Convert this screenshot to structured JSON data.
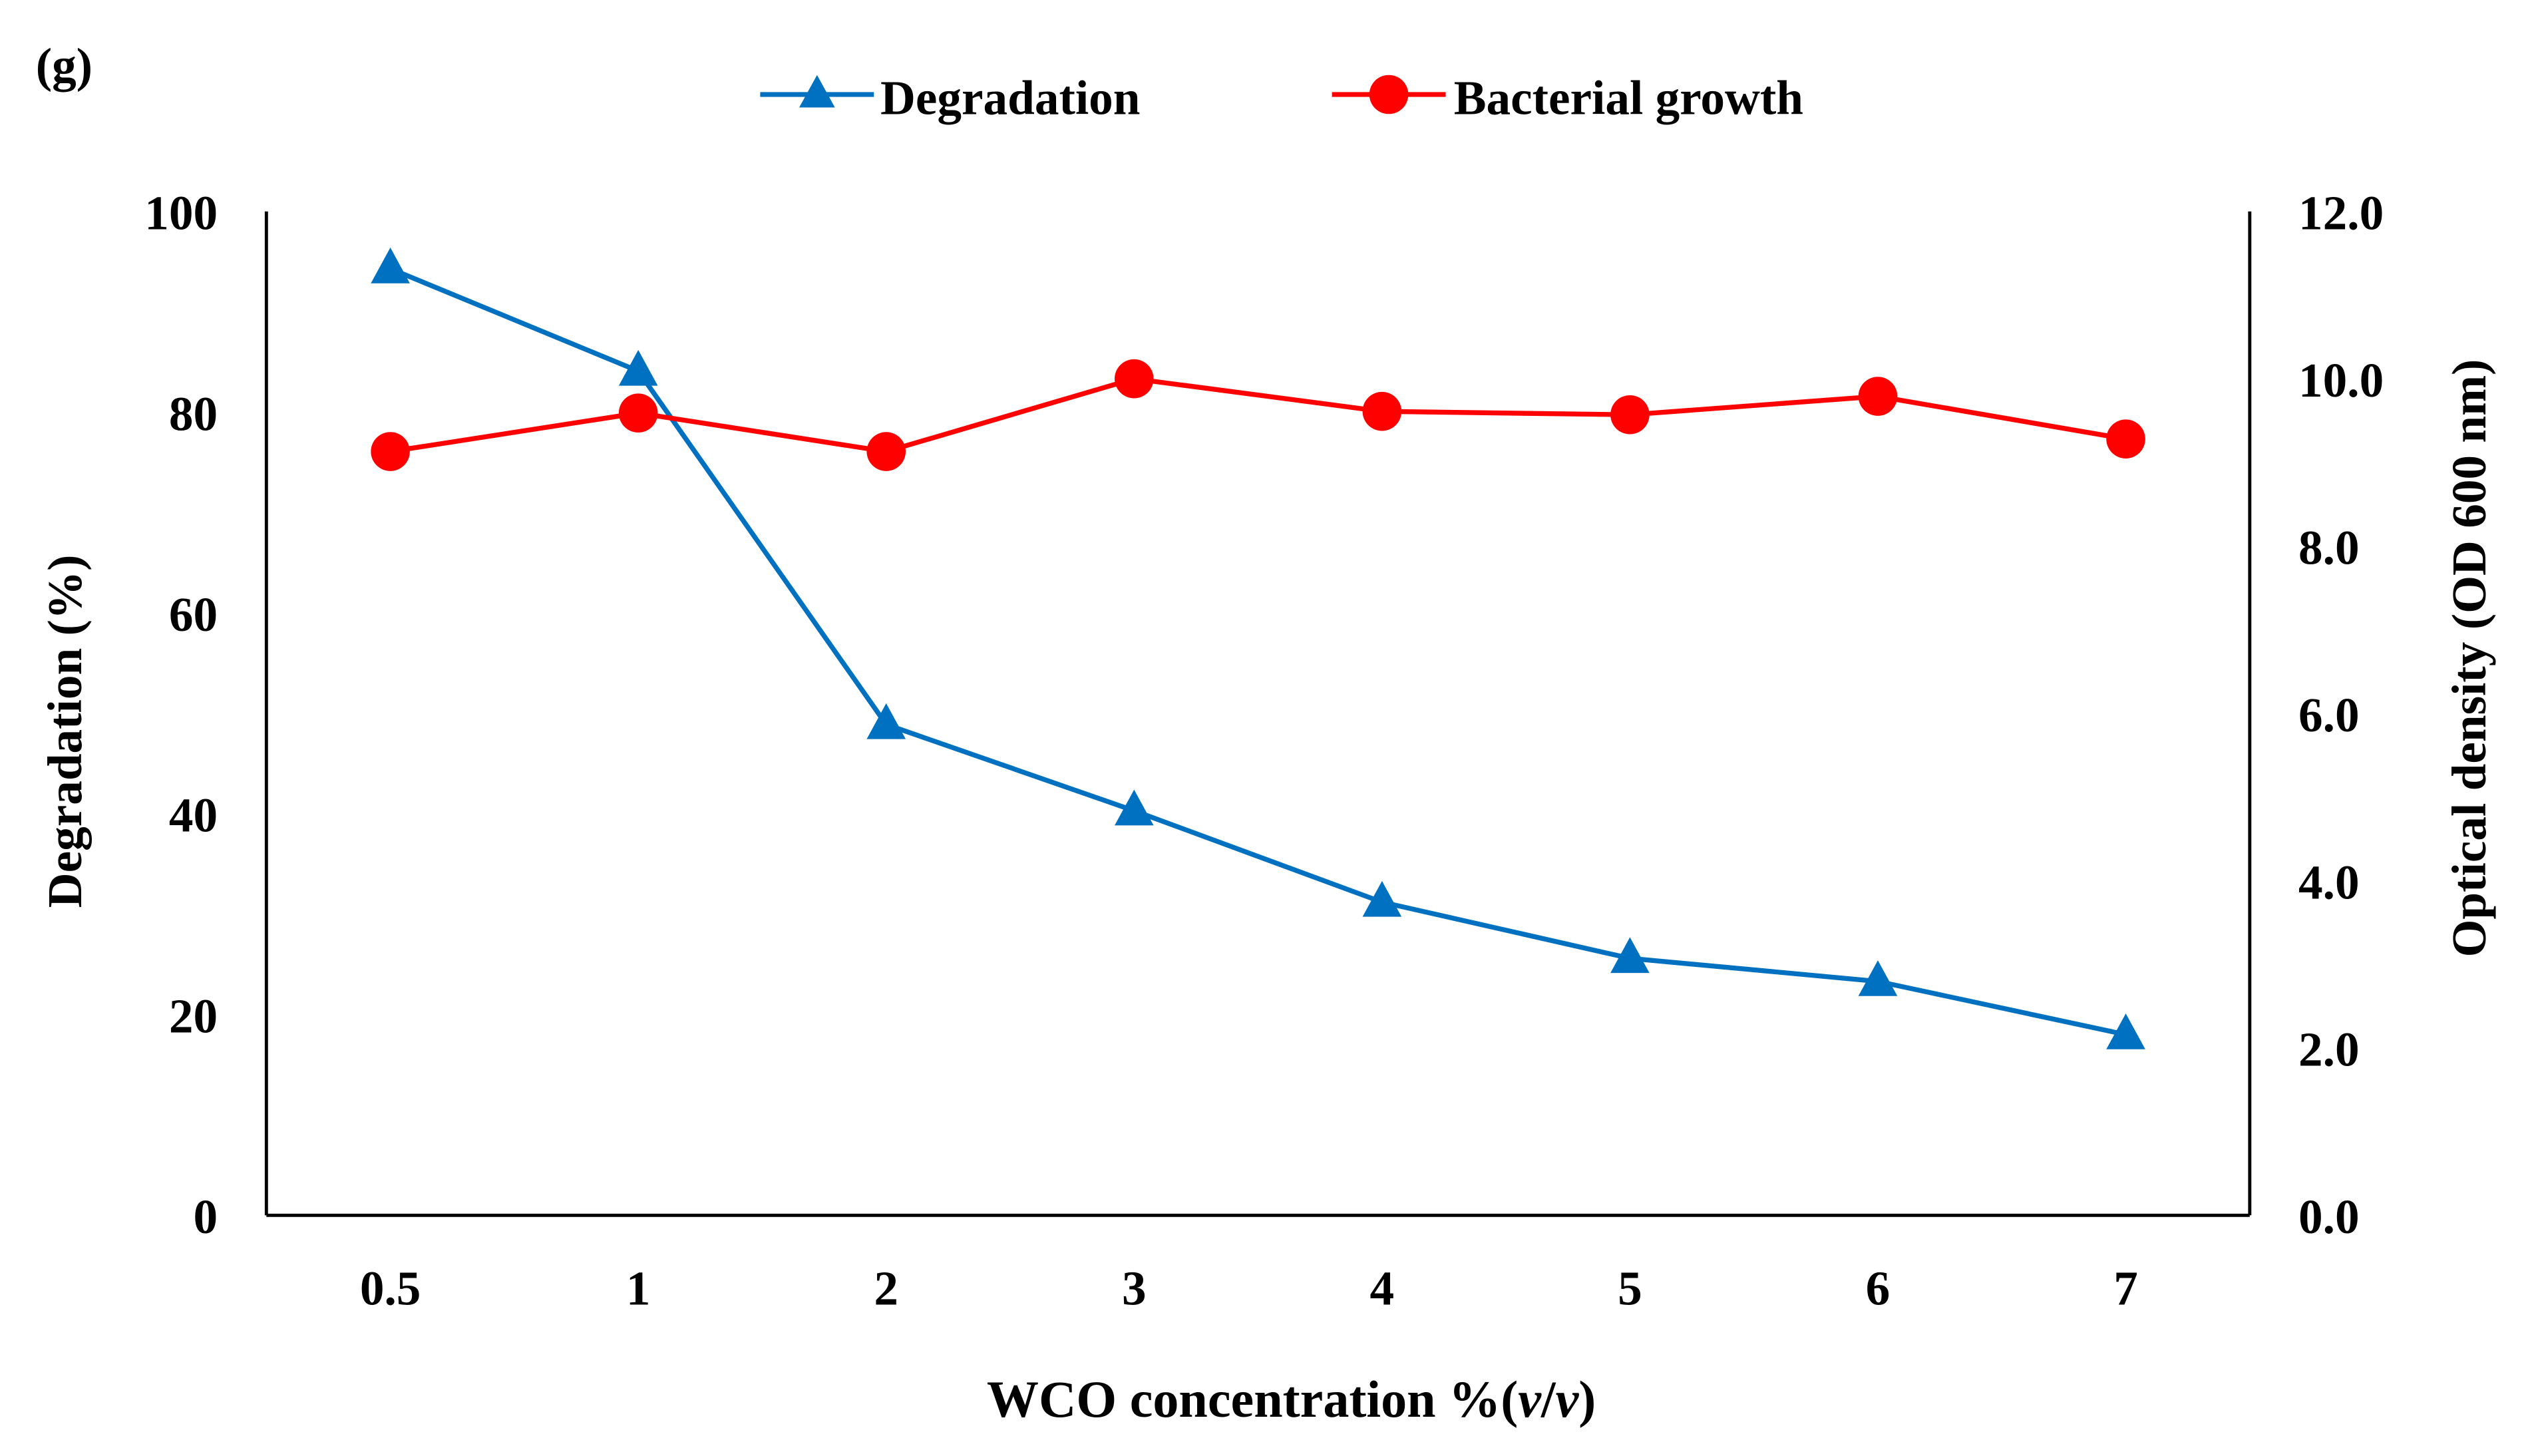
{
  "chart_data": {
    "type": "line",
    "panel_label": "(g)",
    "categories": [
      "0.5",
      "1",
      "2",
      "3",
      "4",
      "5",
      "6",
      "7"
    ],
    "xlabel": "WCO concentration %(v/v)",
    "xlabel_parts": {
      "prefix": "WCO concentration %(",
      "v1": "v",
      "slash": "/",
      "v2": "v",
      "suffix": ")"
    },
    "ylabel": "Degradation (%)",
    "y2label": "Optical density (OD 600 nm)",
    "ylim": [
      0,
      100
    ],
    "y_ticks": [
      "0",
      "20",
      "40",
      "60",
      "80",
      "100"
    ],
    "y2lim": [
      0,
      12
    ],
    "y2_ticks": [
      "0.0",
      "2.0",
      "4.0",
      "6.0",
      "8.0",
      "10.0",
      "12.0"
    ],
    "grid": false,
    "legend_position": "top-center",
    "series": [
      {
        "name": "Degradation",
        "axis": "left",
        "marker": "triangle",
        "color": "#0070C0",
        "values": [
          94.3,
          84.1,
          48.9,
          40.3,
          31.2,
          25.6,
          23.3,
          18.0
        ]
      },
      {
        "name": "Bacterial growth",
        "axis": "right",
        "marker": "circle",
        "color": "#FF0000",
        "values": [
          9.13,
          9.59,
          9.13,
          10.0,
          9.61,
          9.57,
          9.79,
          9.28
        ]
      }
    ]
  }
}
